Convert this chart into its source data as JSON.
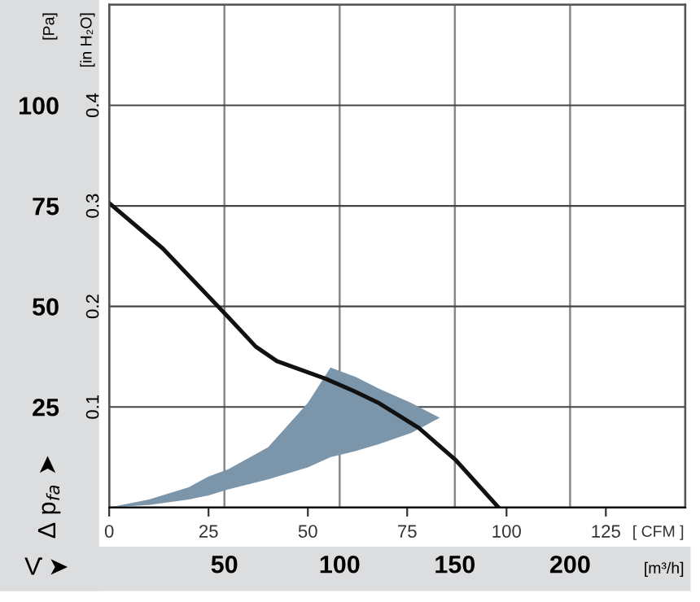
{
  "chart_data": {
    "type": "area",
    "xlabel": "[ CFM ]",
    "x2label": "[m³/h]",
    "ylabel": "[Pa]",
    "y2label": "[in H₂O]",
    "annotations": [
      "Δ p$_{fa}$ ➤",
      "V̇ ➤"
    ],
    "xlim": [
      0,
      145
    ],
    "xticks": [
      0,
      25,
      50,
      75,
      100,
      125
    ],
    "x2lim": [
      0,
      250
    ],
    "x2ticks": [
      50,
      100,
      150,
      200
    ],
    "ylim": [
      0,
      125
    ],
    "yticks": [
      {
        "value": 0,
        "label": null
      },
      25,
      50,
      75,
      100
    ],
    "y2lim": [
      0,
      0.5
    ],
    "y2ticks": [
      0.1,
      0.2,
      0.3,
      0.4
    ],
    "grid": true,
    "legend": false,
    "series": [
      {
        "color": "#7b95ab",
        "x": [
          0,
          10,
          20,
          25,
          30,
          40,
          50,
          55.7,
          62,
          68,
          76,
          83.2
        ],
        "lower": [
          0,
          0.6,
          2,
          3,
          4.5,
          7,
          10,
          12.5,
          14,
          15.8,
          18.5,
          22.3
        ],
        "upper": [
          0,
          2,
          5,
          7.7,
          9.5,
          15,
          26,
          34.8,
          32.5,
          29.5,
          26,
          22.3
        ],
        "values": [
          null,
          null,
          null,
          null,
          null,
          null,
          null,
          null,
          null,
          null,
          null,
          null
        ]
      },
      {
        "type": "line",
        "color": "#111111",
        "x": [
          0,
          13.5,
          21.7,
          29.9,
          36.9,
          42.2,
          54.5,
          61.5,
          68,
          77.9,
          87.3,
          98
        ],
        "values": [
          75.7,
          64.4,
          55.9,
          47.4,
          40,
          36.4,
          32,
          29,
          25.9,
          19.8,
          11.7,
          0
        ]
      }
    ]
  }
}
